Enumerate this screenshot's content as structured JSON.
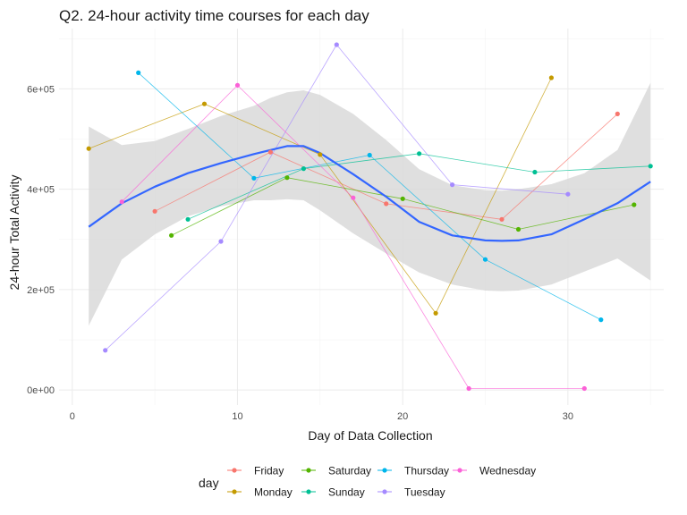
{
  "chart_data": {
    "type": "line",
    "title": "Q2. 24-hour activity time courses for each day",
    "xlabel": "Day of Data Collection",
    "ylabel": "24-hour Total Activity",
    "xlim": [
      -0.8,
      35.8
    ],
    "ylim": [
      -30000,
      720000
    ],
    "x_ticks": [
      0,
      10,
      20,
      30
    ],
    "x_tick_labels": [
      "0",
      "10",
      "20",
      "30"
    ],
    "y_ticks": [
      0,
      200000,
      400000,
      600000
    ],
    "y_tick_labels": [
      "0e+00",
      "2e+05",
      "4e+05",
      "6e+05"
    ],
    "grid": true,
    "legend": {
      "title": "day",
      "position": "bottom",
      "entries": [
        "Friday",
        "Monday",
        "Saturday",
        "Sunday",
        "Thursday",
        "Tuesday",
        "Wednesday"
      ]
    },
    "series": [
      {
        "name": "Friday",
        "color": "#F8766D",
        "x": [
          5,
          12,
          19,
          26,
          33
        ],
        "y": [
          356000,
          474000,
          371000,
          340000,
          550000
        ]
      },
      {
        "name": "Monday",
        "color": "#C49A00",
        "x": [
          1,
          8,
          15,
          22,
          29
        ],
        "y": [
          481000,
          570000,
          469000,
          153000,
          622000
        ]
      },
      {
        "name": "Saturday",
        "color": "#53B400",
        "x": [
          6,
          13,
          20,
          27,
          34
        ],
        "y": [
          308000,
          423000,
          381000,
          320000,
          369000
        ]
      },
      {
        "name": "Sunday",
        "color": "#00C094",
        "x": [
          7,
          14,
          21,
          28,
          35
        ],
        "y": [
          340000,
          441000,
          471000,
          434000,
          446000
        ]
      },
      {
        "name": "Thursday",
        "color": "#00B6EB",
        "x": [
          4,
          11,
          18,
          25,
          32
        ],
        "y": [
          632000,
          422000,
          468000,
          260000,
          140000
        ]
      },
      {
        "name": "Tuesday",
        "color": "#A58AFF",
        "x": [
          2,
          9,
          16,
          23,
          30
        ],
        "y": [
          79000,
          296000,
          688000,
          409000,
          390000
        ]
      },
      {
        "name": "Wednesday",
        "color": "#FB61D7",
        "x": [
          3,
          10,
          17,
          24,
          31
        ],
        "y": [
          375000,
          607000,
          383000,
          3000,
          3000
        ]
      }
    ],
    "smooth": {
      "color": "#3366FF",
      "band_color": "#d9d9d9",
      "x": [
        1,
        3,
        5,
        7,
        9,
        11,
        12,
        13,
        14,
        15,
        17,
        19,
        21,
        23,
        25,
        26,
        27,
        29,
        31,
        33,
        35
      ],
      "y": [
        325000,
        372000,
        405000,
        432000,
        452000,
        470000,
        478000,
        486000,
        486000,
        472000,
        430000,
        385000,
        335000,
        308000,
        298000,
        297000,
        298000,
        310000,
        340000,
        372000,
        415000
      ],
      "upper": [
        525000,
        488000,
        496000,
        520000,
        546000,
        566000,
        582000,
        593000,
        597000,
        588000,
        550000,
        498000,
        440000,
        408000,
        398000,
        397000,
        400000,
        410000,
        432000,
        478000,
        612000
      ],
      "lower": [
        128000,
        260000,
        310000,
        346000,
        366000,
        378000,
        378000,
        380000,
        378000,
        358000,
        312000,
        272000,
        234000,
        210000,
        198000,
        197000,
        198000,
        210000,
        236000,
        262000,
        218000
      ]
    }
  }
}
